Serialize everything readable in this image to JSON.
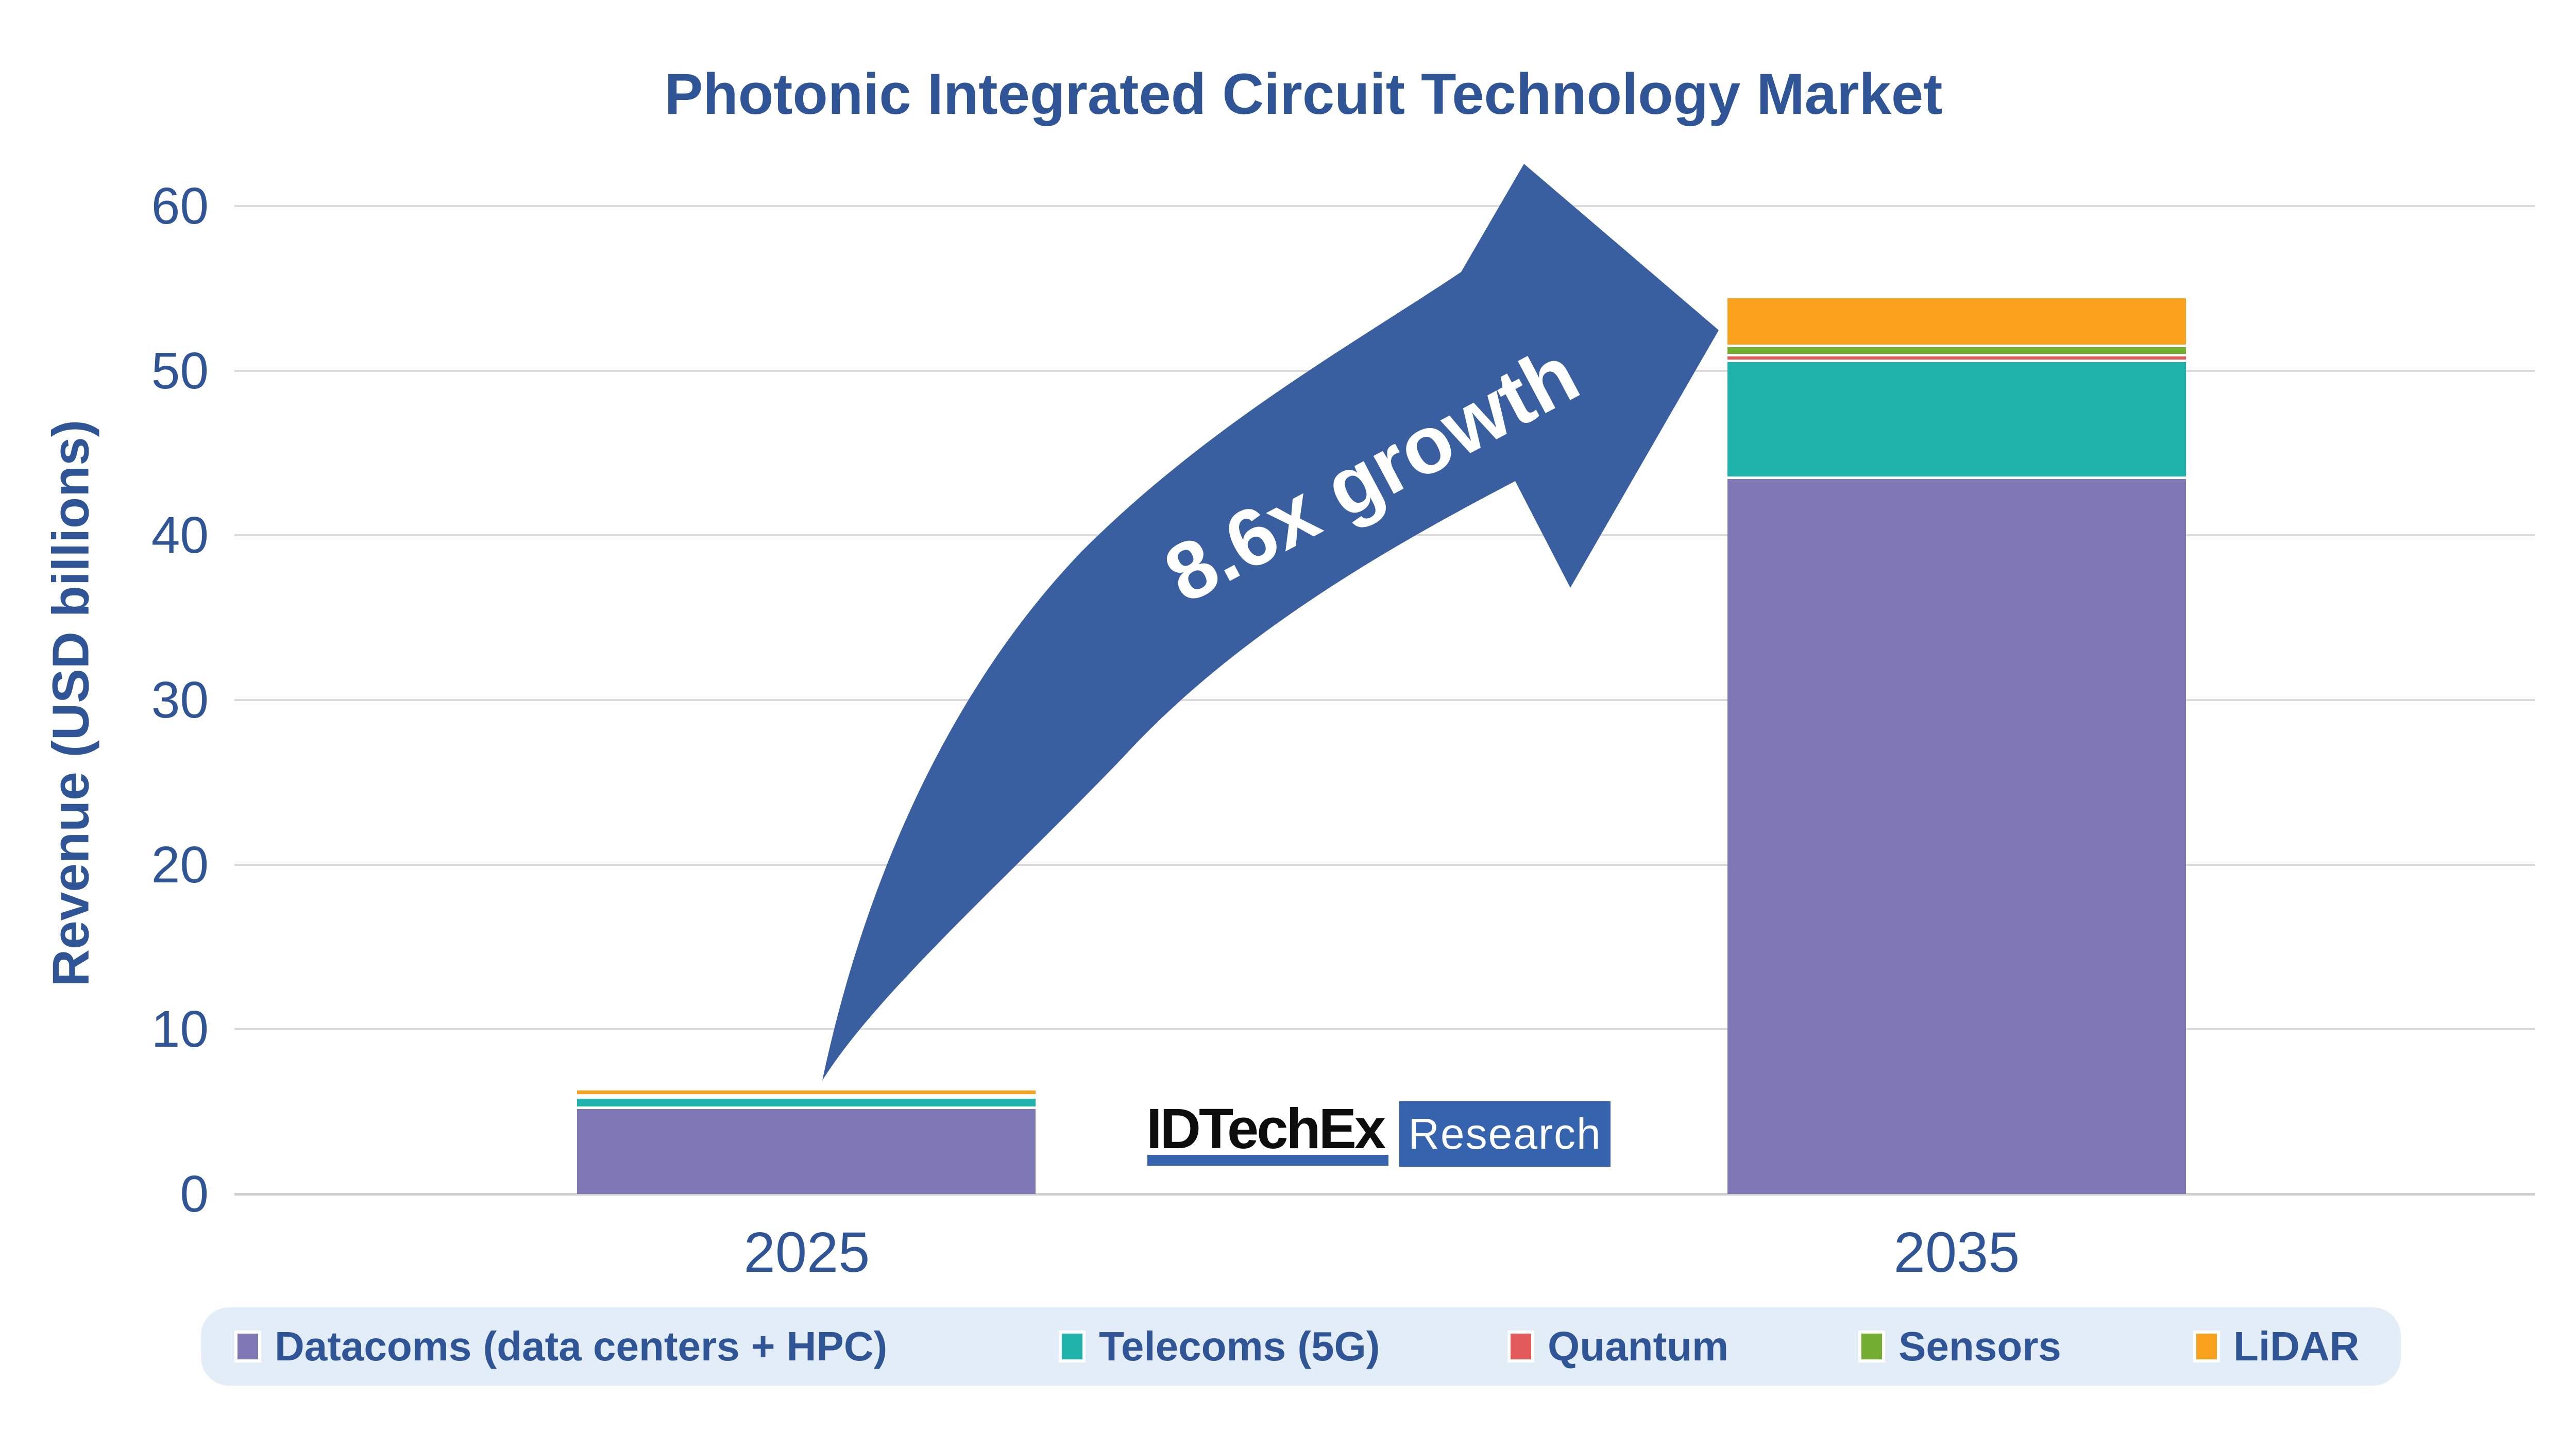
{
  "title": "Photonic Integrated Circuit Technology Market",
  "brand": {
    "name": "IDTechEx",
    "sub": "Research"
  },
  "colors": {
    "text_blue": "#2F5597",
    "arrow_blue": "#3A5FA1",
    "legend_bg": "#E3EDF8",
    "gridline": "#DBDBDB",
    "axis_line": "#CFCFCF",
    "logo_blue": "#3563AE",
    "logo_black": "#0d0d0d"
  },
  "chart_data": {
    "type": "bar",
    "stacked": true,
    "title": "Photonic Integrated Circuit Technology Market",
    "xlabel": "",
    "ylabel": "Revenue (USD billions)",
    "ylim": [
      0,
      60
    ],
    "yticks": [
      0,
      10,
      20,
      30,
      40,
      50,
      60
    ],
    "grid": "horizontal",
    "legend_position": "bottom",
    "categories": [
      "2025",
      "2035"
    ],
    "series": [
      {
        "name": "Datacoms (data centers + HPC)",
        "color": "#7E78B6",
        "values": [
          5.25,
          43.5
        ]
      },
      {
        "name": "Telecoms (5G)",
        "color": "#1FB2AB",
        "values": [
          0.62,
          7.1
        ]
      },
      {
        "name": "Quantum",
        "color": "#E25A5A",
        "values": [
          0.04,
          0.35
        ]
      },
      {
        "name": "Sensors",
        "color": "#72AE2F",
        "values": [
          0.09,
          0.55
        ]
      },
      {
        "name": "LiDAR",
        "color": "#FAA21D",
        "values": [
          0.3,
          2.9
        ]
      }
    ],
    "totals": [
      6.3,
      54.4
    ],
    "annotation": "8.6x growth"
  }
}
